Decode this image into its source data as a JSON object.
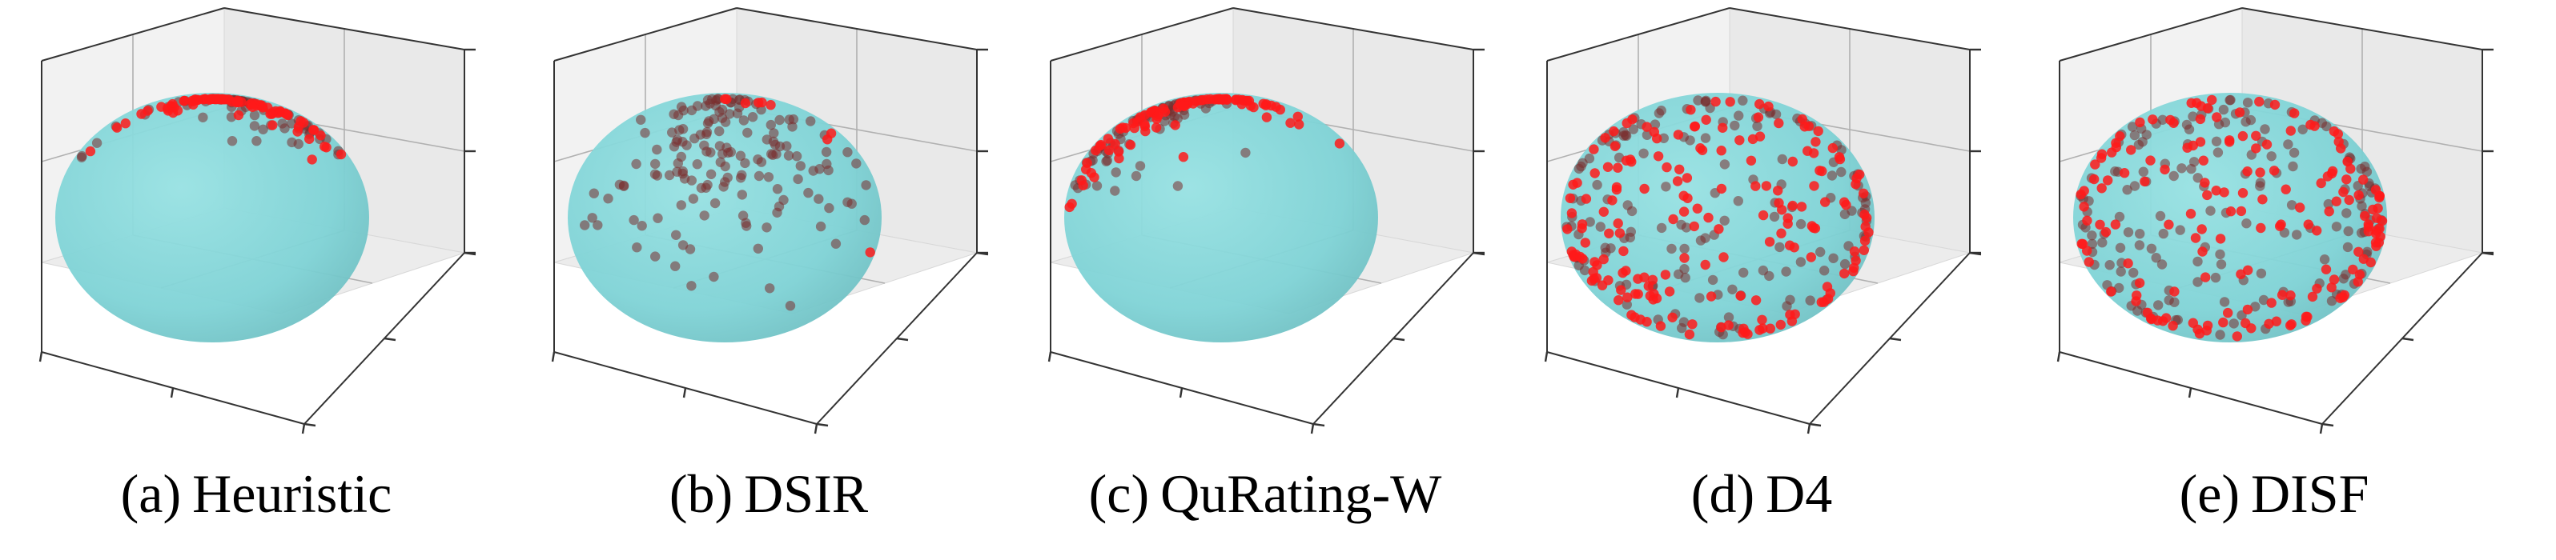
{
  "colors": {
    "sphere": "#7fd3d6",
    "points": "#ff1a1a",
    "pane": "#f2f2f2",
    "grid": "#b0b0b0"
  },
  "chart_data": [
    {
      "type": "scatter",
      "label": "(a)",
      "title": "Heuristic",
      "surface": "sphere",
      "axis_ticklabels": "none",
      "points": {
        "count": 160,
        "distribution": "clustered",
        "center_theta": 0.25,
        "center_phi": 0.2,
        "spread": 0.55
      }
    },
    {
      "type": "scatter",
      "label": "(b)",
      "title": "DSIR",
      "surface": "sphere",
      "axis_ticklabels": "none",
      "points": {
        "count": 170,
        "distribution": "clustered",
        "center_theta": 1.5,
        "center_phi": 1.05,
        "spread": 0.6
      }
    },
    {
      "type": "scatter",
      "label": "(c)",
      "title": "QuRating-W",
      "surface": "sphere",
      "axis_ticklabels": "none",
      "points": {
        "count": 170,
        "distribution": "clustered",
        "center_theta": 3.0,
        "center_phi": 0.45,
        "spread": 0.6
      }
    },
    {
      "type": "scatter",
      "label": "(d)",
      "title": "D4",
      "surface": "sphere",
      "axis_ticklabels": "none",
      "points": {
        "count": 330,
        "distribution": "uniform",
        "hemisphere": "front"
      }
    },
    {
      "type": "scatter",
      "label": "(e)",
      "title": "DISF",
      "surface": "sphere",
      "axis_ticklabels": "none",
      "points": {
        "count": 330,
        "distribution": "uniform",
        "hemisphere": "front"
      }
    }
  ]
}
